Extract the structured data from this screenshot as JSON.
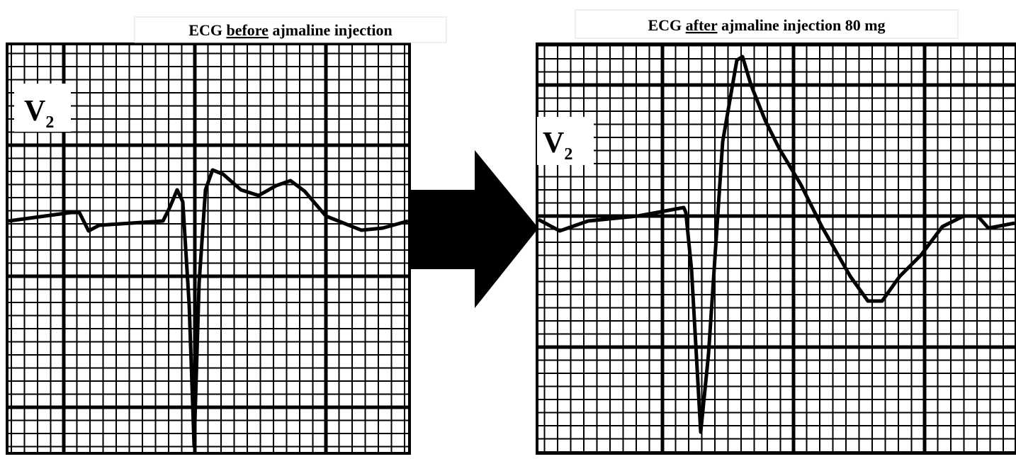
{
  "panels": [
    {
      "title": {
        "before": "ECG ",
        "emphasis": "before",
        "after": " ajmaline injection"
      },
      "lead": "V",
      "lead_sub": "2"
    },
    {
      "title": {
        "before": "ECG ",
        "emphasis": "after",
        "after": " ajmaline injection 80 mg"
      },
      "lead": "V",
      "lead_sub": "2"
    }
  ]
}
